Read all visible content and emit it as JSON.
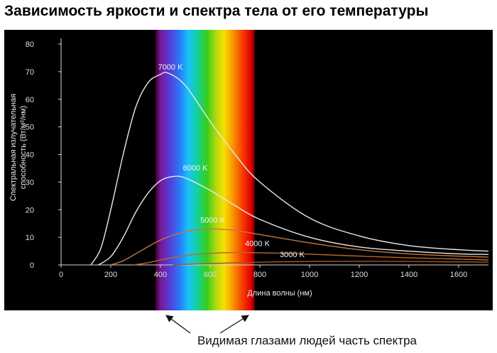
{
  "title": "Зависимость яркости и спектра тела от его температуры",
  "caption": "Видимая глазами людей часть спектра",
  "chart_data": {
    "type": "line",
    "xlabel": "Длина волны (нм)",
    "ylabel_lines": [
      "Спектральная излучательная",
      "способность (Вт/м²/нм)"
    ],
    "xlim": [
      0,
      1720
    ],
    "ylim": [
      0,
      80
    ],
    "x_ticks": [
      0,
      200,
      400,
      600,
      800,
      1000,
      1200,
      1400,
      1600
    ],
    "y_ticks": [
      0,
      10,
      20,
      30,
      40,
      50,
      60,
      70,
      80
    ],
    "grid": false,
    "visible_band": [
      380,
      780
    ],
    "series": [
      {
        "name": "7000 K",
        "color": "#e8e8e8",
        "label_x": 440,
        "label_y": 70,
        "x": [
          120,
          160,
          200,
          250,
          300,
          350,
          400,
          430,
          500,
          600,
          700,
          800,
          1000,
          1200,
          1400,
          1600,
          1720
        ],
        "y": [
          0,
          6,
          20,
          40,
          57,
          66,
          69,
          69.5,
          65,
          52,
          40,
          30,
          17,
          10.5,
          7,
          5.5,
          5
        ]
      },
      {
        "name": "6000 K",
        "color": "#e8e8e8",
        "label_x": 540,
        "label_y": 33.5,
        "x": [
          150,
          200,
          250,
          300,
          350,
          400,
          450,
          500,
          600,
          700,
          800,
          1000,
          1200,
          1400,
          1600,
          1720
        ],
        "y": [
          0,
          3,
          10,
          19,
          26,
          30.5,
          32,
          31.5,
          27,
          21.5,
          16.5,
          10,
          6.5,
          5,
          4,
          3.8
        ]
      },
      {
        "name": "5000 K",
        "color": "#c8783c",
        "label_x": 610,
        "label_y": 14.5,
        "x": [
          200,
          250,
          300,
          400,
          500,
          600,
          700,
          800,
          1000,
          1200,
          1400,
          1600,
          1720
        ],
        "y": [
          0,
          1.5,
          4,
          9,
          12,
          13,
          12.5,
          11,
          8,
          5.5,
          4,
          3.2,
          2.8
        ]
      },
      {
        "name": "4000 K",
        "color": "#b86a28",
        "label_x": 790,
        "label_y": 6,
        "x": [
          290,
          350,
          400,
          500,
          600,
          700,
          800,
          900,
          1000,
          1200,
          1400,
          1600,
          1720
        ],
        "y": [
          0,
          0.8,
          1.8,
          3.4,
          4.2,
          4.5,
          4.4,
          4.2,
          3.9,
          3.2,
          2.6,
          2.1,
          1.8
        ]
      },
      {
        "name": "3000 K",
        "color": "#a05820",
        "label_x": 930,
        "label_y": 2,
        "x": [
          450,
          600,
          800,
          1000,
          1200,
          1400,
          1600,
          1720
        ],
        "y": [
          0,
          0.5,
          1.0,
          1.25,
          1.3,
          1.25,
          1.1,
          1.0
        ]
      }
    ]
  }
}
